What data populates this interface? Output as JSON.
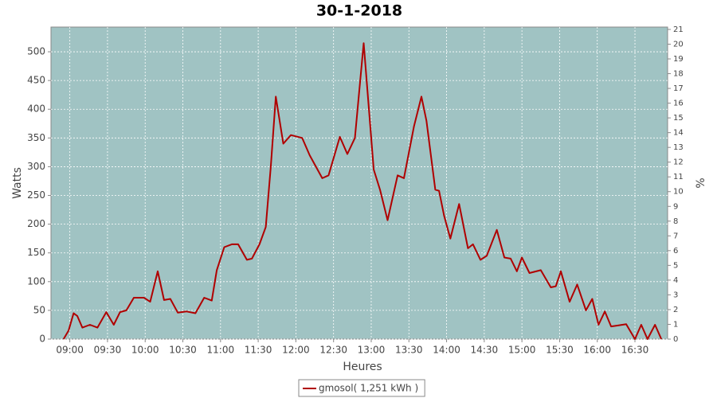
{
  "chart_data": {
    "type": "line",
    "title": "30-1-2018",
    "x_label": "Heures",
    "y_label": "Watts",
    "y2_label": "%",
    "x": [
      "08:55",
      "08:59",
      "09:03",
      "09:06",
      "09:10",
      "09:16",
      "09:22",
      "09:29",
      "09:35",
      "09:40",
      "09:45",
      "09:51",
      "09:59",
      "10:04",
      "10:10",
      "10:15",
      "10:20",
      "10:26",
      "10:33",
      "10:40",
      "10:47",
      "10:53",
      "10:57",
      "11:03",
      "11:09",
      "11:14",
      "11:21",
      "11:25",
      "11:31",
      "11:36",
      "11:40",
      "11:44",
      "11:50",
      "11:56",
      "12:05",
      "12:11",
      "12:21",
      "12:26",
      "12:35",
      "12:41",
      "12:47",
      "12:54",
      "13:02",
      "13:07",
      "13:13",
      "13:21",
      "13:26",
      "13:34",
      "13:40",
      "13:44",
      "13:51",
      "13:54",
      "13:58",
      "14:03",
      "14:10",
      "14:17",
      "14:21",
      "14:27",
      "14:32",
      "14:40",
      "14:46",
      "14:51",
      "14:56",
      "15:00",
      "15:06",
      "15:15",
      "15:23",
      "15:27",
      "15:31",
      "15:38",
      "15:44",
      "15:51",
      "15:56",
      "16:01",
      "16:06",
      "16:11",
      "16:17",
      "16:23",
      "16:30",
      "16:35",
      "16:40",
      "16:46",
      "16:51"
    ],
    "series": [
      {
        "name": "gmosol( 1,251 kWh )",
        "color": "#b00000",
        "values": [
          0,
          15,
          45,
          40,
          20,
          25,
          20,
          47,
          25,
          47,
          50,
          72,
          72,
          65,
          118,
          68,
          70,
          46,
          48,
          45,
          72,
          67,
          120,
          160,
          165,
          165,
          138,
          140,
          165,
          195,
          300,
          422,
          340,
          355,
          350,
          320,
          280,
          285,
          352,
          322,
          350,
          515,
          295,
          260,
          207,
          285,
          280,
          370,
          422,
          380,
          260,
          258,
          215,
          175,
          235,
          158,
          165,
          138,
          145,
          190,
          142,
          140,
          118,
          142,
          115,
          120,
          90,
          92,
          118,
          65,
          95,
          50,
          70,
          25,
          48,
          22,
          24,
          26,
          0,
          25,
          0,
          25,
          0
        ]
      }
    ],
    "xlim": [
      "08:45",
      "16:56"
    ],
    "xticks": [
      "09:00",
      "09:30",
      "10:00",
      "10:30",
      "11:00",
      "11:30",
      "12:00",
      "12:30",
      "13:00",
      "13:30",
      "14:00",
      "14:30",
      "15:00",
      "15:30",
      "16:00",
      "16:30"
    ],
    "ylim": [
      0,
      543
    ],
    "yticks": [
      0,
      50,
      100,
      150,
      200,
      250,
      300,
      350,
      400,
      450,
      500
    ],
    "y2lim": [
      0,
      21.16
    ],
    "y2ticks": [
      0,
      1,
      2,
      3,
      4,
      5,
      6,
      7,
      8,
      9,
      10,
      11,
      12,
      13,
      14,
      15,
      16,
      17,
      18,
      19,
      20,
      21
    ],
    "grid": true,
    "background": "#a0c3c3"
  }
}
